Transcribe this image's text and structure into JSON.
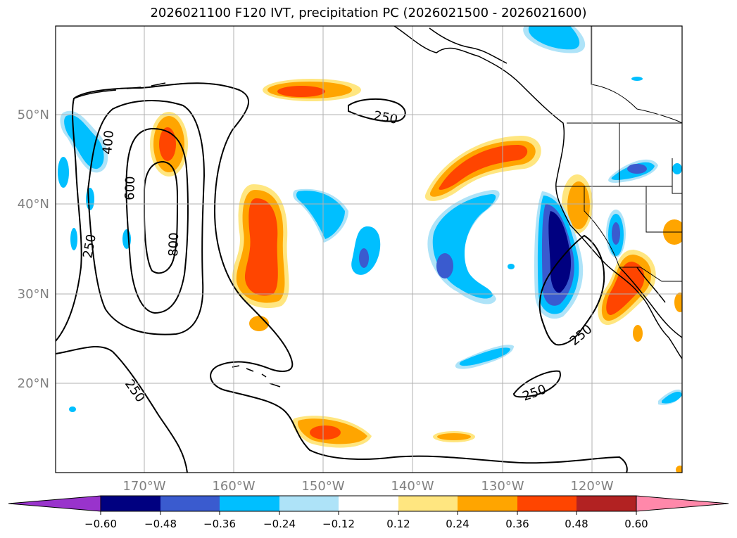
{
  "title": "2026021100 F120 IVT, precipitation PC (2026021500 - 2026021600)",
  "colors": {
    "neg_extend": "#9933cc",
    "neg060": "#000080",
    "neg048": "#3a5bcf",
    "neg036": "#00bfff",
    "neg024": "#aee3f8",
    "neutral": "#ffffff",
    "pos012": "#ffe680",
    "pos024": "#ffa500",
    "pos036": "#ff4500",
    "pos048": "#b22222",
    "pos_extend": "#ff88aa"
  },
  "axes": {
    "lon_labels": [
      "170°W",
      "160°W",
      "150°W",
      "140°W",
      "130°W",
      "120°W"
    ],
    "lat_labels": [
      "50°N",
      "40°N",
      "30°N",
      "20°N"
    ]
  },
  "colorbar": {
    "ticks": [
      "−0.60",
      "−0.48",
      "−0.36",
      "−0.24",
      "−0.12",
      "0.12",
      "0.24",
      "0.36",
      "0.48",
      "0.60"
    ]
  },
  "contour_labels": [
    "250",
    "400",
    "600",
    "800",
    "250",
    "250",
    "250",
    "250"
  ]
}
